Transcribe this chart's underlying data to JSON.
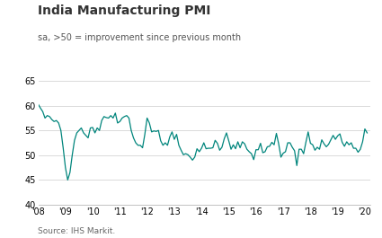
{
  "title": "India Manufacturing PMI",
  "subtitle": "sa, >50 = improvement since previous month",
  "source": "Source: IHS Markit.",
  "line_color": "#00857c",
  "background_color": "#ffffff",
  "grid_color": "#cccccc",
  "ylim": [
    40,
    65
  ],
  "yticks": [
    40,
    45,
    50,
    55,
    60,
    65
  ],
  "xlabel_years": [
    "'08",
    "'09",
    "'10",
    "'11",
    "'12",
    "'13",
    "'14",
    "'15",
    "'16",
    "'17",
    "'18",
    "'19",
    "'20"
  ],
  "pmi_values": [
    60.3,
    59.5,
    58.8,
    57.5,
    58.0,
    57.8,
    57.2,
    56.8,
    57.0,
    56.5,
    55.0,
    51.5,
    47.5,
    45.0,
    46.5,
    50.0,
    53.0,
    54.5,
    55.0,
    55.5,
    54.5,
    54.0,
    53.5,
    55.5,
    55.6,
    54.5,
    55.5,
    55.0,
    57.0,
    57.8,
    57.6,
    57.5,
    58.0,
    57.5,
    58.5,
    56.5,
    56.8,
    57.5,
    57.8,
    58.0,
    57.5,
    55.0,
    53.5,
    52.5,
    52.0,
    52.0,
    51.5,
    54.2,
    57.5,
    56.5,
    54.7,
    54.9,
    54.8,
    55.0,
    52.9,
    52.0,
    52.5,
    52.0,
    53.7,
    54.7,
    53.2,
    54.2,
    52.0,
    51.0,
    50.1,
    50.3,
    50.1,
    49.6,
    49.0,
    49.6,
    51.3,
    50.7,
    51.4,
    52.5,
    51.3,
    51.4,
    51.4,
    51.5,
    53.0,
    52.4,
    51.0,
    51.6,
    53.3,
    54.5,
    52.9,
    51.2,
    52.1,
    51.3,
    52.7,
    51.5,
    52.7,
    52.3,
    51.2,
    50.7,
    50.3,
    49.1,
    51.1,
    51.1,
    52.4,
    50.5,
    50.7,
    51.7,
    51.8,
    52.6,
    52.1,
    54.4,
    52.3,
    49.6,
    50.4,
    50.7,
    52.5,
    52.5,
    51.6,
    50.9,
    47.9,
    51.2,
    51.2,
    50.3,
    52.6,
    54.7,
    52.4,
    52.1,
    51.0,
    51.6,
    51.2,
    53.1,
    52.3,
    51.7,
    52.2,
    53.1,
    54.0,
    53.2,
    53.9,
    54.3,
    52.6,
    51.8,
    52.7,
    52.1,
    52.5,
    51.4,
    51.4,
    50.6,
    51.2,
    52.7,
    55.3,
    54.5
  ],
  "title_fontsize": 10,
  "subtitle_fontsize": 7,
  "tick_fontsize": 7,
  "source_fontsize": 6.5
}
